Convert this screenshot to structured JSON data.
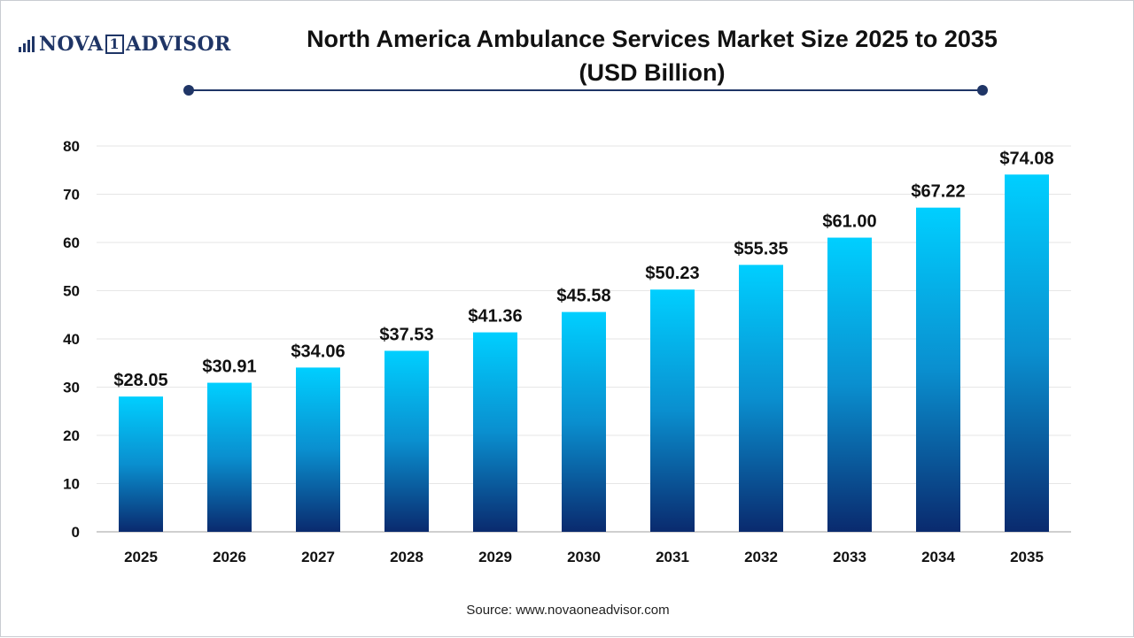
{
  "logo": {
    "text_left": "NOVA",
    "text_box": "1",
    "text_right": "ADVISOR"
  },
  "title": {
    "line1": "North America Ambulance Services Market Size 2025 to 2035",
    "line2": "(USD Billion)"
  },
  "source": "Source: www.novaoneadvisor.com",
  "colors": {
    "bar_top": "#00cfff",
    "bar_bottom": "#0a2a6e",
    "accent": "#1f3566",
    "grid": "#e6e6e6"
  },
  "chart_data": {
    "type": "bar",
    "categories": [
      "2025",
      "2026",
      "2027",
      "2028",
      "2029",
      "2030",
      "2031",
      "2032",
      "2033",
      "2034",
      "2035"
    ],
    "values": [
      28.05,
      30.91,
      34.06,
      37.53,
      41.36,
      45.58,
      50.23,
      55.35,
      61.0,
      67.22,
      74.08
    ],
    "data_labels": [
      "$28.05",
      "$30.91",
      "$34.06",
      "$37.53",
      "$41.36",
      "$45.58",
      "$50.23",
      "$55.35",
      "$61.00",
      "$67.22",
      "$74.08"
    ],
    "ylim": [
      0,
      80
    ],
    "yticks": [
      0,
      10,
      20,
      30,
      40,
      50,
      60,
      70,
      80
    ],
    "grid": true,
    "legend": "none"
  }
}
